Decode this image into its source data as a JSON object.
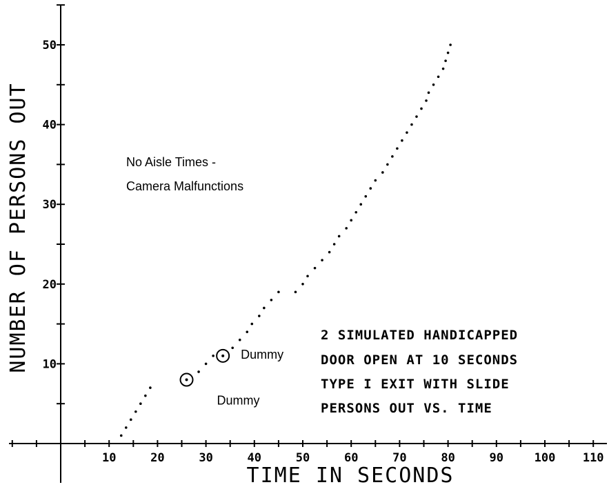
{
  "chart_data": {
    "type": "scatter",
    "xlabel": "TIME IN SECONDS",
    "ylabel": "NUMBER OF PERSONS OUT",
    "xlim": [
      -10,
      115
    ],
    "ylim": [
      0,
      53
    ],
    "x_ticks": [
      10,
      20,
      30,
      40,
      50,
      60,
      70,
      80,
      90,
      100,
      110
    ],
    "y_ticks": [
      10,
      20,
      30,
      40,
      50
    ],
    "grid": false,
    "series": [
      {
        "points": [
          [
            12.5,
            1
          ],
          [
            13.5,
            2
          ],
          [
            14.5,
            3
          ],
          [
            15.5,
            4
          ],
          [
            16.5,
            5
          ],
          [
            17.5,
            6
          ],
          [
            18.5,
            7
          ],
          [
            28.5,
            9
          ],
          [
            30,
            10
          ],
          [
            31.5,
            11
          ],
          [
            35.5,
            12
          ],
          [
            37,
            13
          ],
          [
            38.5,
            14
          ],
          [
            39.5,
            15
          ],
          [
            41,
            16
          ],
          [
            42,
            17
          ],
          [
            43.5,
            18
          ],
          [
            45,
            19
          ],
          [
            48.5,
            19
          ],
          [
            50,
            20
          ],
          [
            51,
            21
          ],
          [
            52.5,
            22
          ],
          [
            54,
            23
          ],
          [
            55.5,
            24
          ],
          [
            56.5,
            25
          ],
          [
            57.5,
            26
          ],
          [
            59,
            27
          ],
          [
            60,
            28
          ],
          [
            61,
            29
          ],
          [
            62,
            30
          ],
          [
            63,
            31
          ],
          [
            64,
            32
          ],
          [
            65,
            33
          ],
          [
            66.5,
            34
          ],
          [
            67.5,
            35
          ],
          [
            68.5,
            36
          ],
          [
            69.5,
            37
          ],
          [
            70.5,
            38
          ],
          [
            71.5,
            39
          ],
          [
            72.5,
            40
          ],
          [
            73.5,
            41
          ],
          [
            74.5,
            42
          ],
          [
            75.5,
            43
          ],
          [
            76,
            44
          ],
          [
            77,
            45
          ],
          [
            78,
            46
          ],
          [
            79,
            47
          ],
          [
            79.5,
            48
          ],
          [
            80,
            49
          ],
          [
            80.5,
            50
          ]
        ]
      }
    ],
    "markers": [
      {
        "x": 26,
        "y": 8,
        "label": "Dummy"
      },
      {
        "x": 33.5,
        "y": 11,
        "label": "Dummy"
      }
    ],
    "annotations": [
      "No Aisle Times -",
      "Camera Malfunctions"
    ],
    "caption_lines": [
      "2 SIMULATED HANDICAPPED",
      "DOOR OPEN AT 10 SECONDS",
      "TYPE I EXIT WITH SLIDE",
      "PERSONS OUT VS. TIME"
    ]
  }
}
